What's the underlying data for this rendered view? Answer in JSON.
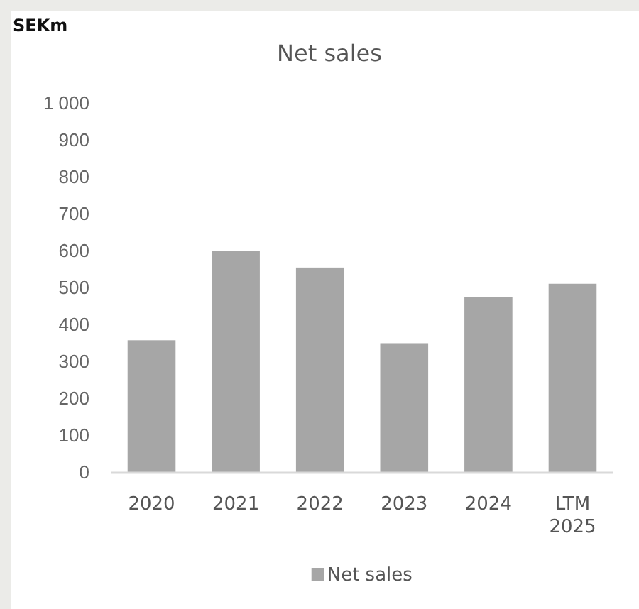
{
  "chart_data": {
    "type": "bar",
    "title": "Net sales",
    "ylabel": "SEKm",
    "categories": [
      "2020",
      "2021",
      "2022",
      "2023",
      "2024",
      "LTM 2025"
    ],
    "series": [
      {
        "name": "Net sales",
        "color": "#a6a6a6",
        "values": [
          359,
          600,
          556,
          351,
          476,
          512
        ]
      }
    ],
    "ylim": [
      0,
      1000
    ],
    "yticks": [
      0,
      100,
      200,
      300,
      400,
      500,
      600,
      700,
      800,
      900,
      {
        "value": 1000,
        "label": "1 000"
      }
    ],
    "grid": false,
    "legend": "bottom"
  }
}
